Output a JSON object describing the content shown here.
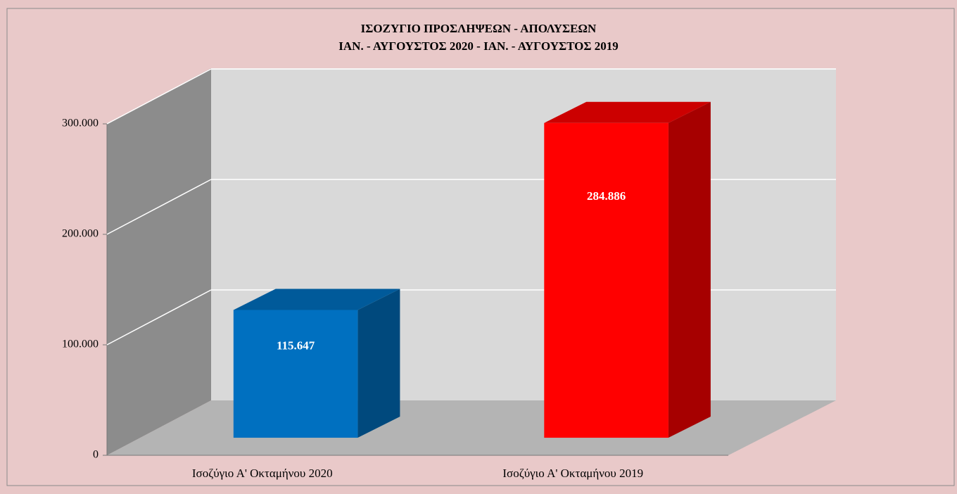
{
  "chart_data": {
    "type": "bar3d",
    "title": "ΙΣΟΖΥΓΙΟ  ΠΡΟΣΛΗΨΕΩΝ  -  ΑΠΟΛΥΣΕΩΝ",
    "subtitle": "ΙΑΝ. - ΑΥΓΟΥΣΤΟΣ 2020  -  ΙΑΝ. - ΑΥΓΟΥΣΤΟΣ 2019",
    "categories": [
      "Ισοζύγιο Α' Οκταμήνου 2020",
      "Ισοζύγιο Α' Οκταμήνου 2019"
    ],
    "values": [
      115647,
      284886
    ],
    "value_labels": [
      "115.647",
      "284.886"
    ],
    "colors": [
      "#0070c0",
      "#ff0000"
    ],
    "ylim": [
      0,
      300000
    ],
    "yticks": [
      0,
      {
        "value": 100000,
        "label": "100.000"
      },
      {
        "value": 200000,
        "label": "200.000"
      },
      {
        "value": 300000,
        "label": "300.000"
      }
    ],
    "grid": true
  }
}
